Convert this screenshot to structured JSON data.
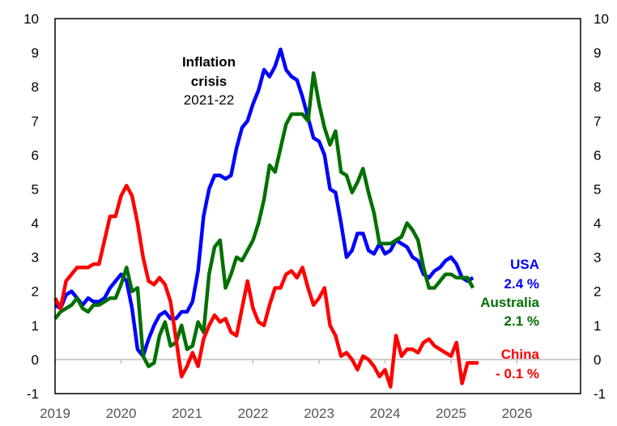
{
  "chart_data": {
    "type": "line",
    "title": "",
    "xlabel": "",
    "ylabel": "",
    "ylim": [
      -1,
      10
    ],
    "xlim": [
      "2019-01",
      "2026-12"
    ],
    "y_ticks": [
      "10",
      "9",
      "8",
      "7",
      "6",
      "5",
      "4",
      "3",
      "2",
      "1",
      "0",
      "-1"
    ],
    "y_ticks_right": [
      "10",
      "9",
      "8",
      "7",
      "6",
      "5",
      "4",
      "3",
      "2",
      "1",
      "0",
      "-1"
    ],
    "x_ticks": [
      "2019",
      "2020",
      "2021",
      "2022",
      "2023",
      "2024",
      "2025",
      "2026"
    ],
    "grid": false,
    "zero_line": true,
    "x_start": "2019-01",
    "frequency": "monthly",
    "annotation": {
      "line1": "Inflation",
      "line2": "crisis",
      "line3": "2021-22"
    },
    "series": [
      {
        "name": "USA",
        "label_value": "2.4 %",
        "color": "#0000ff",
        "values": [
          1.6,
          1.5,
          1.9,
          2.0,
          1.8,
          1.6,
          1.8,
          1.7,
          1.7,
          1.8,
          2.1,
          2.3,
          2.5,
          2.3,
          1.5,
          0.3,
          0.1,
          0.6,
          1.0,
          1.3,
          1.4,
          1.2,
          1.2,
          1.4,
          1.4,
          1.7,
          2.6,
          4.2,
          5.0,
          5.4,
          5.4,
          5.3,
          5.4,
          6.2,
          6.8,
          7.0,
          7.5,
          7.9,
          8.5,
          8.3,
          8.6,
          9.1,
          8.5,
          8.3,
          8.2,
          7.7,
          7.1,
          6.5,
          6.4,
          6.0,
          5.0,
          4.9,
          4.0,
          3.0,
          3.2,
          3.7,
          3.7,
          3.2,
          3.1,
          3.4,
          3.1,
          3.2,
          3.5,
          3.4,
          3.3,
          3.0,
          2.9,
          2.5,
          2.4,
          2.6,
          2.7,
          2.9,
          3.0,
          2.8,
          2.4,
          2.3,
          2.4
        ]
      },
      {
        "name": "Australia",
        "label_value": "2.1 %",
        "color": "#007000",
        "values": [
          1.2,
          1.4,
          1.5,
          1.6,
          1.8,
          1.5,
          1.4,
          1.6,
          1.6,
          1.7,
          1.8,
          1.8,
          2.2,
          2.7,
          2.0,
          2.1,
          0.1,
          -0.2,
          -0.1,
          0.7,
          1.1,
          0.4,
          0.5,
          1.0,
          0.3,
          0.4,
          1.1,
          0.8,
          2.5,
          3.3,
          3.5,
          2.1,
          2.5,
          3.0,
          2.9,
          3.2,
          3.5,
          4.0,
          4.7,
          5.7,
          5.5,
          6.2,
          6.9,
          7.2,
          7.2,
          7.2,
          7.0,
          8.4,
          7.5,
          6.8,
          6.3,
          6.7,
          5.5,
          5.4,
          4.9,
          5.2,
          5.6,
          4.9,
          4.3,
          3.4,
          3.4,
          3.4,
          3.5,
          3.6,
          4.0,
          3.8,
          3.5,
          2.7,
          2.1,
          2.1,
          2.3,
          2.5,
          2.5,
          2.4,
          2.4,
          2.4,
          2.1
        ]
      },
      {
        "name": "China",
        "label_value": "- 0.1 %",
        "color": "#ff0000",
        "values": [
          1.8,
          1.5,
          2.3,
          2.5,
          2.7,
          2.7,
          2.7,
          2.8,
          2.8,
          3.5,
          4.2,
          4.2,
          4.8,
          5.1,
          4.8,
          4.0,
          3.0,
          2.3,
          2.2,
          2.4,
          2.2,
          1.7,
          0.6,
          -0.5,
          -0.2,
          0.2,
          -0.2,
          0.6,
          1.0,
          1.3,
          1.1,
          1.2,
          0.8,
          0.7,
          1.5,
          2.3,
          1.5,
          1.1,
          1.0,
          1.6,
          2.1,
          2.1,
          2.5,
          2.6,
          2.4,
          2.7,
          2.1,
          1.6,
          1.8,
          2.1,
          1.0,
          0.7,
          0.1,
          0.2,
          0.0,
          -0.3,
          0.1,
          0.0,
          -0.2,
          -0.5,
          -0.3,
          -0.8,
          0.7,
          0.1,
          0.3,
          0.3,
          0.2,
          0.5,
          0.6,
          0.4,
          0.3,
          0.2,
          0.1,
          0.5,
          -0.7,
          -0.1,
          -0.1,
          -0.1
        ]
      }
    ]
  }
}
